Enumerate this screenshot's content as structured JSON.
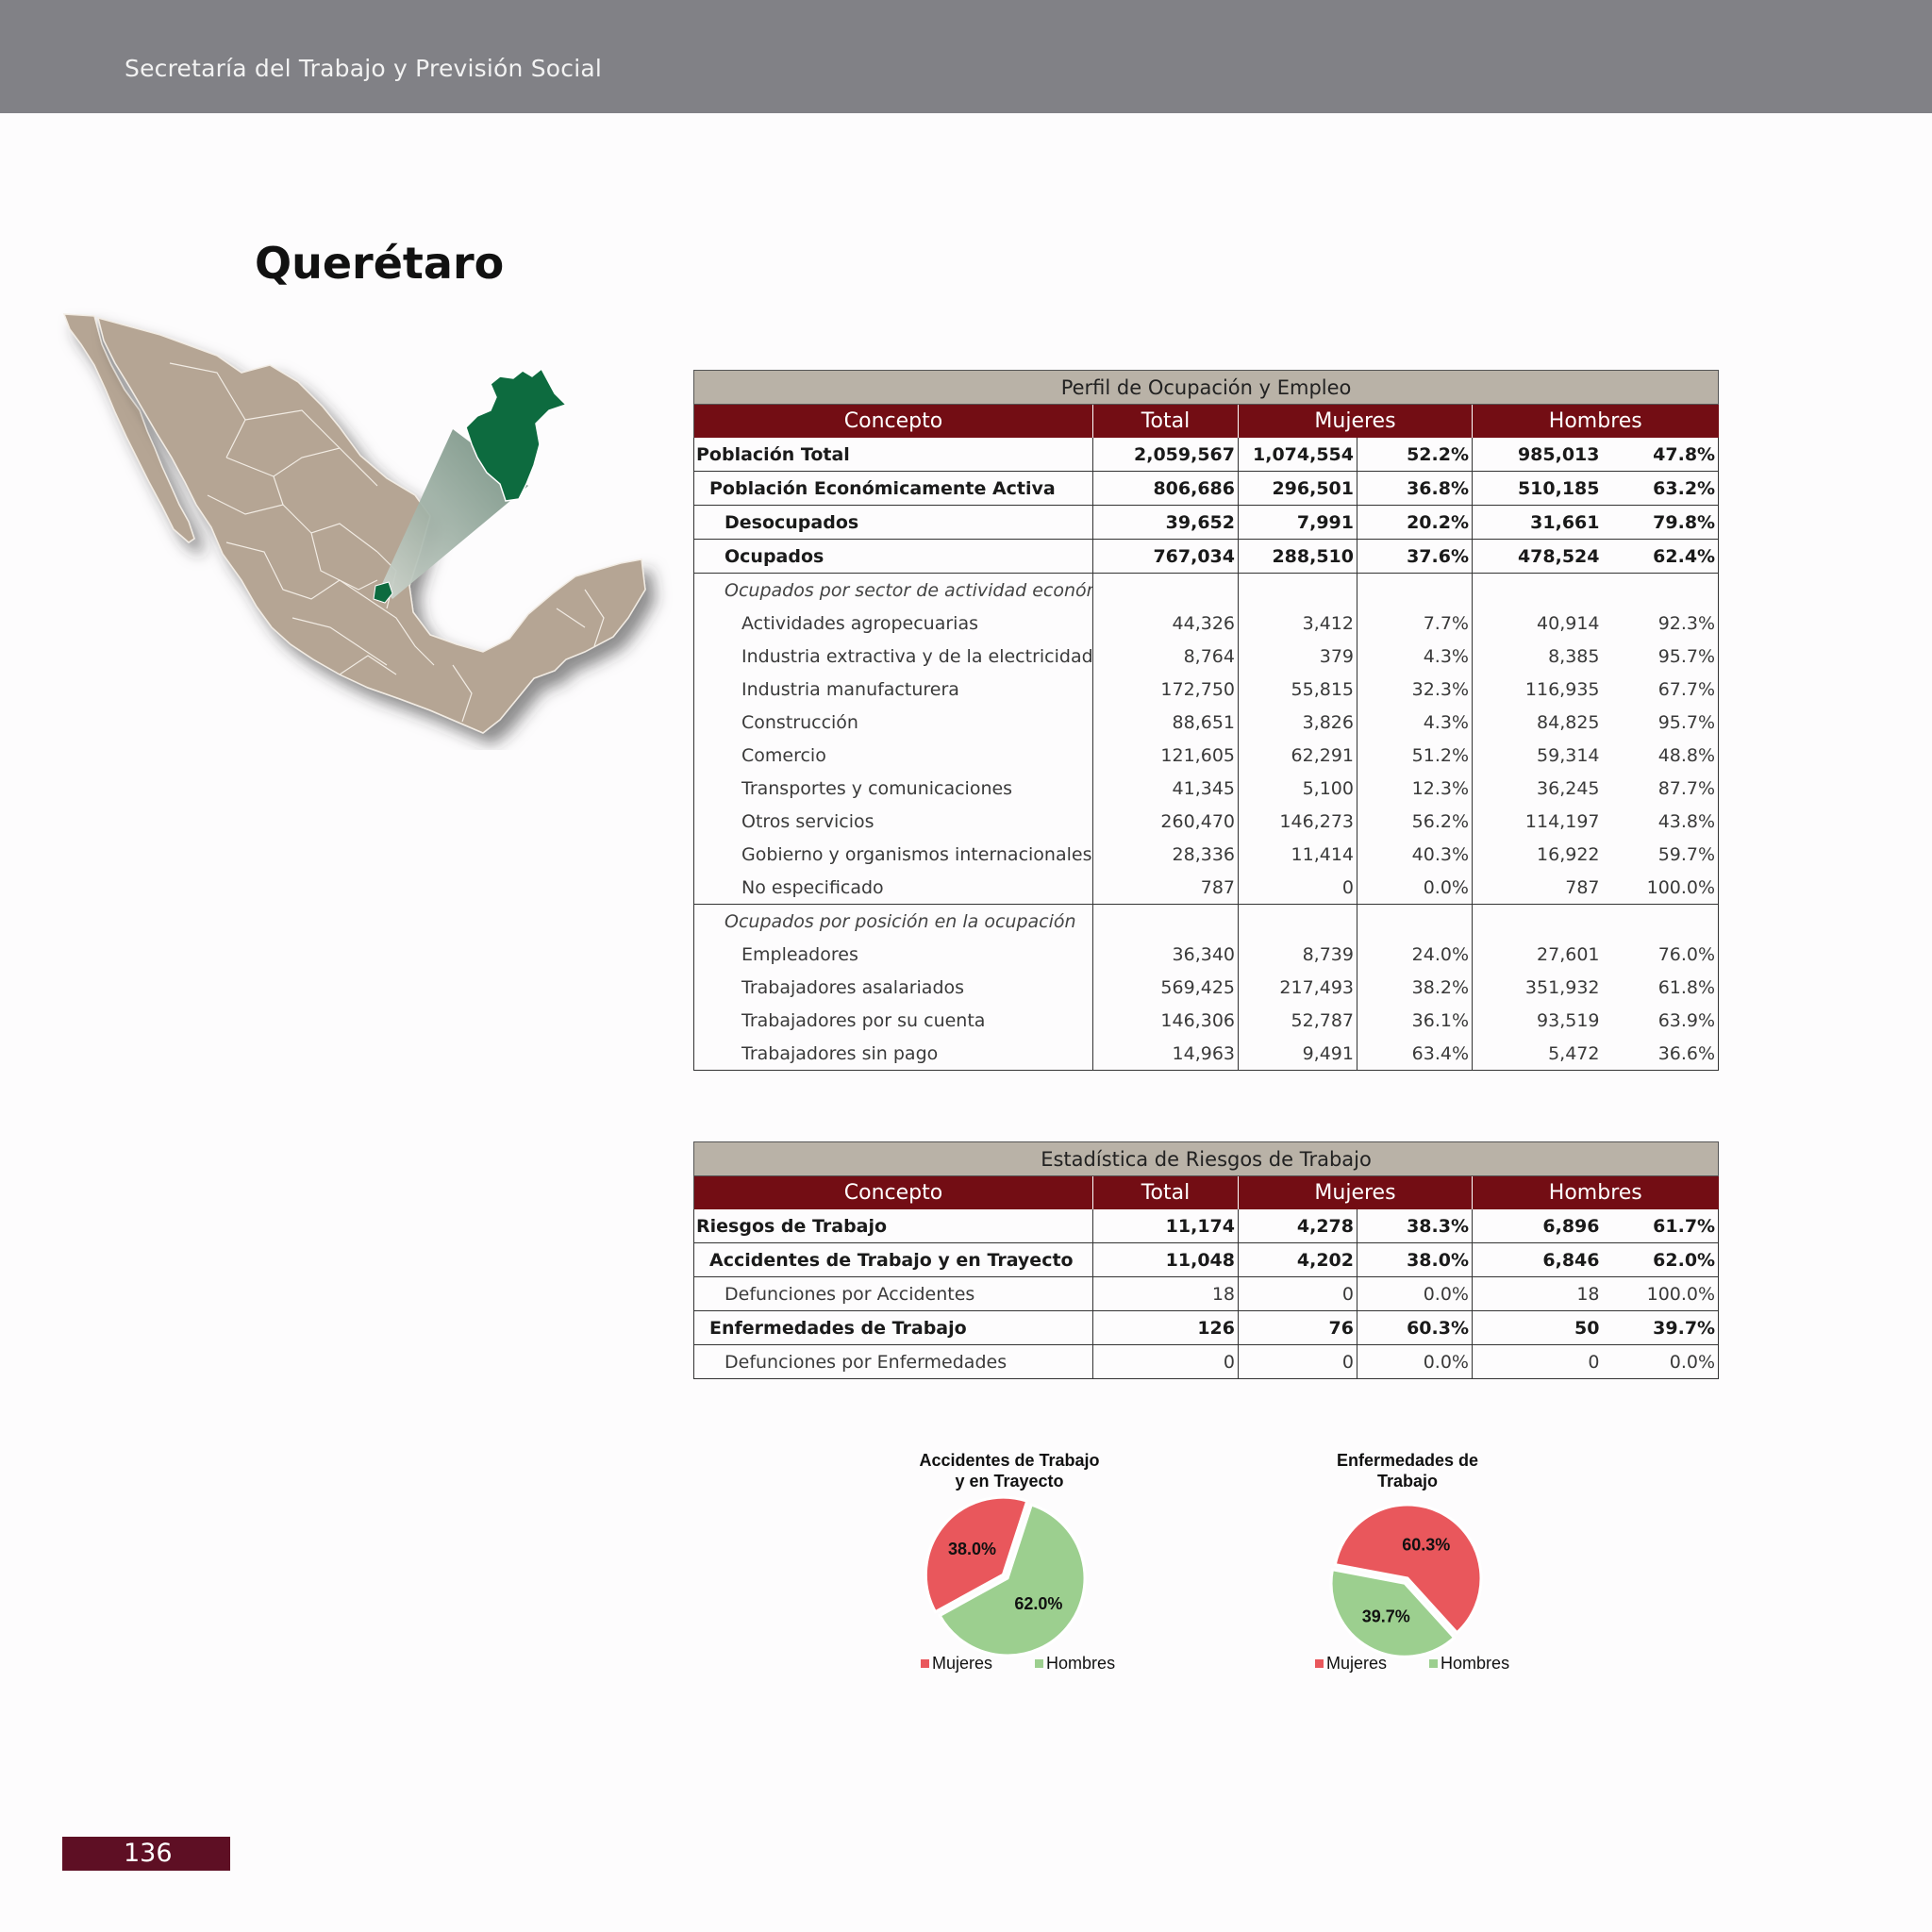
{
  "header": {
    "org": "Secretaría del Trabajo y Previsión Social"
  },
  "page_title": "Querétaro",
  "colors": {
    "map_land": "#b5a594",
    "map_highlight": "#0d6b3f",
    "table_head": "#730d14",
    "table_title": "#b9b2a7",
    "mujeres": "#e9575c",
    "hombres": "#9ccf8f"
  },
  "tables": {
    "ocupacion": {
      "title": "Perfil de Ocupación y Empleo",
      "headers": [
        "Concepto",
        "Total",
        "Mujeres",
        "Hombres"
      ],
      "rows": [
        [
          "Población Total",
          "2,059,567",
          "1,074,554",
          "52.2%",
          "985,013",
          "47.8%"
        ],
        [
          "Población Económicamente Activa",
          "806,686",
          "296,501",
          "36.8%",
          "510,185",
          "63.2%"
        ],
        [
          "Desocupados",
          "39,652",
          "7,991",
          "20.2%",
          "31,661",
          "79.8%"
        ],
        [
          "Ocupados",
          "767,034",
          "288,510",
          "37.6%",
          "478,524",
          "62.4%"
        ],
        [
          "Ocupados por sector de actividad económica",
          "",
          "",
          "",
          "",
          ""
        ],
        [
          "Actividades agropecuarias",
          "44,326",
          "3,412",
          "7.7%",
          "40,914",
          "92.3%"
        ],
        [
          "Industria extractiva y de la electricidad",
          "8,764",
          "379",
          "4.3%",
          "8,385",
          "95.7%"
        ],
        [
          "Industria manufacturera",
          "172,750",
          "55,815",
          "32.3%",
          "116,935",
          "67.7%"
        ],
        [
          "Construcción",
          "88,651",
          "3,826",
          "4.3%",
          "84,825",
          "95.7%"
        ],
        [
          "Comercio",
          "121,605",
          "62,291",
          "51.2%",
          "59,314",
          "48.8%"
        ],
        [
          "Transportes y comunicaciones",
          "41,345",
          "5,100",
          "12.3%",
          "36,245",
          "87.7%"
        ],
        [
          "Otros servicios",
          "260,470",
          "146,273",
          "56.2%",
          "114,197",
          "43.8%"
        ],
        [
          "Gobierno y organismos internacionales",
          "28,336",
          "11,414",
          "40.3%",
          "16,922",
          "59.7%"
        ],
        [
          "No especificado",
          "787",
          "0",
          "0.0%",
          "787",
          "100.0%"
        ],
        [
          "Ocupados por posición en la ocupación",
          "",
          "",
          "",
          "",
          ""
        ],
        [
          "Empleadores",
          "36,340",
          "8,739",
          "24.0%",
          "27,601",
          "76.0%"
        ],
        [
          "Trabajadores asalariados",
          "569,425",
          "217,493",
          "38.2%",
          "351,932",
          "61.8%"
        ],
        [
          "Trabajadores por su cuenta",
          "146,306",
          "52,787",
          "36.1%",
          "93,519",
          "63.9%"
        ],
        [
          "Trabajadores sin pago",
          "14,963",
          "9,491",
          "63.4%",
          "5,472",
          "36.6%"
        ]
      ]
    },
    "riesgos": {
      "title": "Estadística de Riesgos de Trabajo",
      "headers": [
        "Concepto",
        "Total",
        "Mujeres",
        "Hombres"
      ],
      "rows": [
        [
          "Riesgos de Trabajo",
          "11,174",
          "4,278",
          "38.3%",
          "6,896",
          "61.7%"
        ],
        [
          "Accidentes de Trabajo y en Trayecto",
          "11,048",
          "4,202",
          "38.0%",
          "6,846",
          "62.0%"
        ],
        [
          "Defunciones por Accidentes",
          "18",
          "0",
          "0.0%",
          "18",
          "100.0%"
        ],
        [
          "Enfermedades de Trabajo",
          "126",
          "76",
          "60.3%",
          "50",
          "39.7%"
        ],
        [
          "Defunciones por Enfermedades",
          "0",
          "0",
          "0.0%",
          "0",
          "0.0%"
        ]
      ]
    }
  },
  "chart_data": [
    {
      "type": "pie",
      "title": "Accidentes de Trabajo y en Trayecto",
      "title_lines": [
        "Accidentes de Trabajo",
        "y en Trayecto"
      ],
      "categories": [
        "Mujeres",
        "Hombres"
      ],
      "values": [
        38.0,
        62.0
      ],
      "labels": [
        "38.0%",
        "62.0%"
      ],
      "colors": [
        "#e9575c",
        "#9ccf8f"
      ],
      "legend": "bottom"
    },
    {
      "type": "pie",
      "title": "Enfermedades de Trabajo",
      "title_lines": [
        "Enfermedades de",
        "Trabajo"
      ],
      "categories": [
        "Mujeres",
        "Hombres"
      ],
      "values": [
        60.3,
        39.7
      ],
      "labels": [
        "60.3%",
        "39.7%"
      ],
      "colors": [
        "#e9575c",
        "#9ccf8f"
      ],
      "legend": "bottom"
    }
  ],
  "footer": {
    "page_number": "136"
  }
}
